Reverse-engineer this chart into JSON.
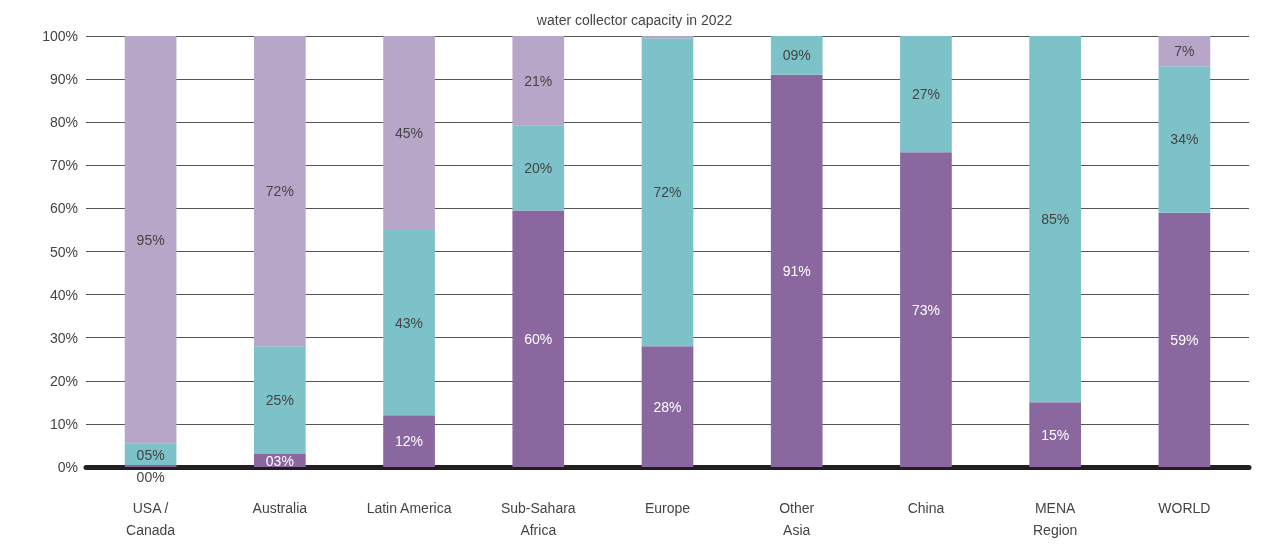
{
  "chart_data": {
    "type": "bar",
    "title": "water collector capacity in 2022",
    "stacked": true,
    "categories": [
      "USA /\nCanada",
      "Australia",
      "Latin America",
      "Sub-Sahara\nAfrica",
      "Europe",
      "Other\nAsia",
      "China",
      "MENA\nRegion",
      "WORLD"
    ],
    "series": [
      {
        "color": "#8b67a0",
        "values": [
          0.4,
          3,
          12,
          59.5,
          28,
          91,
          73,
          15,
          59
        ],
        "value_labels": [
          "00%",
          "03%",
          "12%",
          "60%",
          "28%",
          "91%",
          "73%",
          "15%",
          "59%"
        ]
      },
      {
        "color": "#7cc2c8",
        "values": [
          5,
          25,
          43,
          19.8,
          71.5,
          9,
          27,
          85,
          34
        ],
        "value_labels": [
          "05%",
          "25%",
          "43%",
          "20%",
          "72%",
          "09%",
          "27%",
          "85%",
          "34%"
        ]
      },
      {
        "color": "#b8a6c9",
        "values": [
          95,
          72,
          45,
          20.7,
          0.5,
          0,
          0,
          0,
          7
        ],
        "value_labels": [
          "95%",
          "72%",
          "45%",
          "21%",
          null,
          null,
          null,
          null,
          "7%"
        ]
      }
    ],
    "ylim": [
      0,
      100
    ],
    "yticks": [
      {
        "value": 0,
        "label": "0%"
      },
      {
        "value": 10,
        "label": "10%"
      },
      {
        "value": 20,
        "label": "20%"
      },
      {
        "value": 30,
        "label": "30%"
      },
      {
        "value": 40,
        "label": "40%"
      },
      {
        "value": 50,
        "label": "50%"
      },
      {
        "value": 60,
        "label": "60%"
      },
      {
        "value": 70,
        "label": "70%"
      },
      {
        "value": 80,
        "label": "80%"
      },
      {
        "value": 90,
        "label": "90%"
      },
      {
        "value": 100,
        "label": "100%"
      }
    ],
    "grid": "y"
  }
}
